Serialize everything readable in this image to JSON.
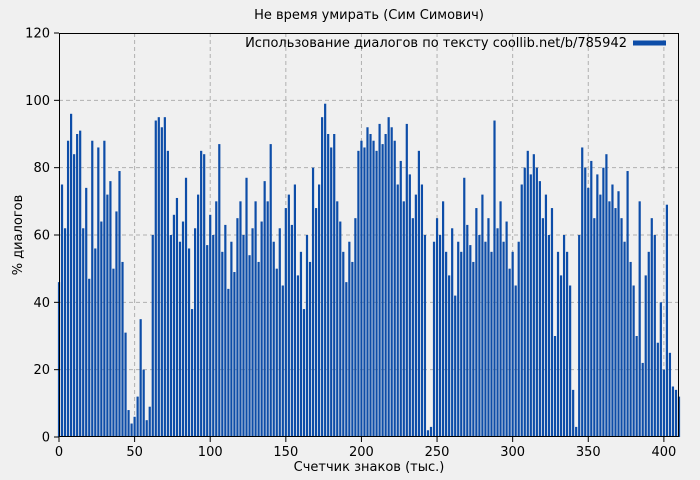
{
  "window": {
    "background": "#f0f0f0"
  },
  "chart_data": {
    "type": "bar",
    "title": "Не время умирать (Сим Симович)",
    "legend": "Использование диалогов по тексту coollib.net/b/785942",
    "legend_position": "top-right-inside",
    "xlabel": "Счетчик знаков (тыс.)",
    "ylabel": "% диалогов",
    "xlim": [
      0,
      410
    ],
    "ylim": [
      0,
      120
    ],
    "xticks": [
      0,
      50,
      100,
      150,
      200,
      250,
      300,
      350,
      400
    ],
    "yticks": [
      0,
      20,
      40,
      60,
      80,
      100,
      120
    ],
    "grid": true,
    "grid_color": "#b0b0b0",
    "bar_color": "#0d4da8",
    "axis_color": "#000000",
    "background": "#f0f0f0",
    "x": [
      0,
      2,
      4,
      6,
      8,
      10,
      12,
      14,
      16,
      18,
      20,
      22,
      24,
      26,
      28,
      30,
      32,
      34,
      36,
      38,
      40,
      42,
      44,
      46,
      48,
      50,
      52,
      54,
      56,
      58,
      60,
      62,
      64,
      66,
      68,
      70,
      72,
      74,
      76,
      78,
      80,
      82,
      84,
      86,
      88,
      90,
      92,
      94,
      96,
      98,
      100,
      102,
      104,
      106,
      108,
      110,
      112,
      114,
      116,
      118,
      120,
      122,
      124,
      126,
      128,
      130,
      132,
      134,
      136,
      138,
      140,
      142,
      144,
      146,
      148,
      150,
      152,
      154,
      156,
      158,
      160,
      162,
      164,
      166,
      168,
      170,
      172,
      174,
      176,
      178,
      180,
      182,
      184,
      186,
      188,
      190,
      192,
      194,
      196,
      198,
      200,
      202,
      204,
      206,
      208,
      210,
      212,
      214,
      216,
      218,
      220,
      222,
      224,
      226,
      228,
      230,
      232,
      234,
      236,
      238,
      240,
      242,
      244,
      246,
      248,
      250,
      252,
      254,
      256,
      258,
      260,
      262,
      264,
      266,
      268,
      270,
      272,
      274,
      276,
      278,
      280,
      282,
      284,
      286,
      288,
      290,
      292,
      294,
      296,
      298,
      300,
      302,
      304,
      306,
      308,
      310,
      312,
      314,
      316,
      318,
      320,
      322,
      324,
      326,
      328,
      330,
      332,
      334,
      336,
      338,
      340,
      342,
      344,
      346,
      348,
      350,
      352,
      354,
      356,
      358,
      360,
      362,
      364,
      366,
      368,
      370,
      372,
      374,
      376,
      378,
      380,
      382,
      384,
      386,
      388,
      390,
      392,
      394,
      396,
      398,
      400,
      402,
      404,
      406,
      408,
      410
    ],
    "y": [
      46,
      75,
      62,
      88,
      96,
      84,
      90,
      91,
      62,
      74,
      47,
      88,
      56,
      86,
      64,
      88,
      72,
      76,
      50,
      67,
      79,
      52,
      31,
      8,
      4,
      6,
      12,
      35,
      20,
      5,
      9,
      60,
      94,
      95,
      92,
      95,
      85,
      60,
      66,
      71,
      58,
      64,
      77,
      56,
      38,
      62,
      72,
      85,
      84,
      57,
      66,
      60,
      70,
      87,
      55,
      63,
      44,
      58,
      49,
      65,
      70,
      60,
      77,
      54,
      62,
      70,
      52,
      64,
      76,
      70,
      87,
      58,
      50,
      62,
      45,
      68,
      72,
      63,
      75,
      48,
      55,
      38,
      60,
      52,
      80,
      68,
      75,
      95,
      99,
      90,
      86,
      90,
      70,
      64,
      55,
      46,
      58,
      52,
      65,
      85,
      88,
      86,
      92,
      90,
      88,
      85,
      93,
      87,
      90,
      95,
      92,
      88,
      75,
      82,
      70,
      93,
      78,
      65,
      72,
      85,
      75,
      60,
      2,
      3,
      58,
      65,
      60,
      70,
      55,
      48,
      62,
      42,
      58,
      55,
      77,
      63,
      57,
      52,
      68,
      60,
      72,
      58,
      65,
      55,
      94,
      62,
      70,
      58,
      64,
      50,
      55,
      45,
      58,
      75,
      80,
      85,
      78,
      84,
      80,
      76,
      65,
      72,
      60,
      68,
      30,
      55,
      48,
      60,
      55,
      45,
      14,
      3,
      60,
      86,
      80,
      74,
      82,
      65,
      78,
      72,
      80,
      84,
      70,
      75,
      68,
      73,
      65,
      58,
      79,
      52,
      45,
      30,
      70,
      22,
      48,
      55,
      65,
      60,
      28,
      40,
      20,
      69,
      25,
      15,
      14,
      12
    ]
  }
}
